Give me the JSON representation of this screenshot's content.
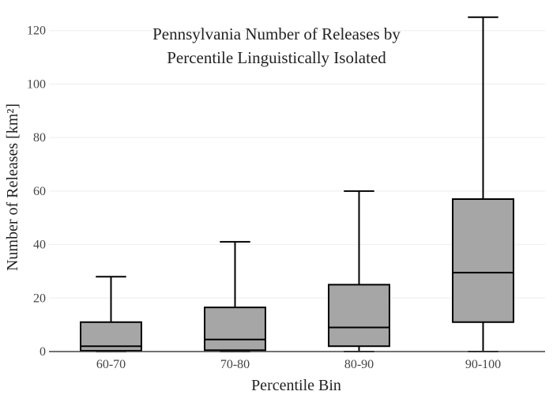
{
  "chart_data": {
    "type": "box",
    "title_lines": [
      "Pennsylvania Number of Releases by",
      "Percentile Linguistically Isolated"
    ],
    "xlabel": "Percentile Bin",
    "ylabel": "Number of Releases  [km²]",
    "ylim": [
      0,
      127
    ],
    "yticks": [
      0,
      20,
      40,
      60,
      80,
      100,
      120
    ],
    "categories": [
      "60-70",
      "70-80",
      "80-90",
      "90-100"
    ],
    "boxes": [
      {
        "category": "60-70",
        "min": 0,
        "q1": 0.3,
        "median": 2,
        "q3": 11,
        "max": 28
      },
      {
        "category": "70-80",
        "min": 0,
        "q1": 0.5,
        "median": 4.5,
        "q3": 16.5,
        "max": 41
      },
      {
        "category": "80-90",
        "min": 0,
        "q1": 2,
        "median": 9,
        "q3": 25,
        "max": 60
      },
      {
        "category": "90-100",
        "min": 0,
        "q1": 11,
        "median": 29.5,
        "q3": 57,
        "max": 125
      }
    ],
    "grid": true,
    "colors": {
      "box_fill": "#a6a6a6",
      "box_stroke": "#000000",
      "grid": "#eeeeee",
      "axis": "#444444"
    }
  }
}
